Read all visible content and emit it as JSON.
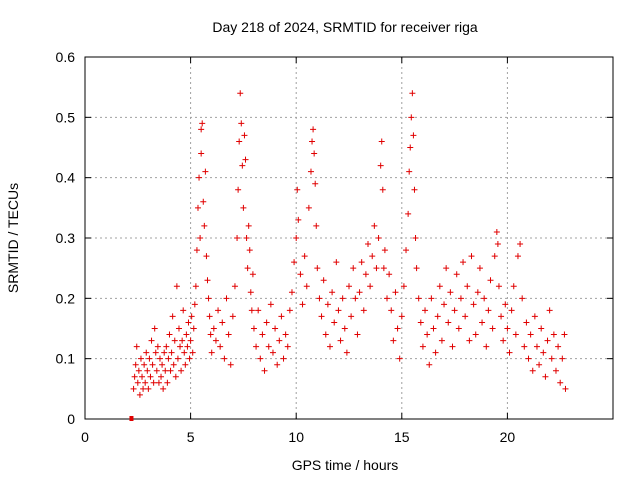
{
  "chart_data": {
    "type": "scatter",
    "title": "Day 218 of 2024, SRMTID for receiver riga",
    "xlabel": "GPS time / hours",
    "ylabel": "SRMTID / TECUs",
    "xlim": [
      0,
      25
    ],
    "ylim": [
      0,
      0.6
    ],
    "x_ticks": [
      0,
      5,
      10,
      15,
      20
    ],
    "x_tick_labels": [
      "0",
      "5",
      "10",
      "15",
      "20"
    ],
    "y_ticks": [
      0,
      0.1,
      0.2,
      0.3,
      0.4,
      0.5,
      0.6
    ],
    "y_tick_labels": [
      "0",
      "0.1",
      "0.2",
      "0.3",
      "0.4",
      "0.5",
      "0.6"
    ],
    "grid": true,
    "marker": "+",
    "series_color": "#e00000",
    "special_points": [
      {
        "x": 2.2,
        "y": 0.0,
        "marker": "square"
      }
    ],
    "series": [
      {
        "name": "SRMTID",
        "points": [
          [
            2.3,
            0.05
          ],
          [
            2.35,
            0.07
          ],
          [
            2.4,
            0.09
          ],
          [
            2.45,
            0.12
          ],
          [
            2.5,
            0.06
          ],
          [
            2.55,
            0.08
          ],
          [
            2.6,
            0.04
          ],
          [
            2.65,
            0.1
          ],
          [
            2.7,
            0.07
          ],
          [
            2.75,
            0.05
          ],
          [
            2.8,
            0.09
          ],
          [
            2.85,
            0.06
          ],
          [
            2.9,
            0.11
          ],
          [
            2.95,
            0.08
          ],
          [
            3.0,
            0.05
          ],
          [
            3.05,
            0.1
          ],
          [
            3.1,
            0.07
          ],
          [
            3.15,
            0.13
          ],
          [
            3.2,
            0.09
          ],
          [
            3.25,
            0.06
          ],
          [
            3.3,
            0.15
          ],
          [
            3.35,
            0.11
          ],
          [
            3.4,
            0.08
          ],
          [
            3.45,
            0.12
          ],
          [
            3.5,
            0.06
          ],
          [
            3.55,
            0.1
          ],
          [
            3.6,
            0.07
          ],
          [
            3.65,
            0.09
          ],
          [
            3.7,
            0.05
          ],
          [
            3.75,
            0.11
          ],
          [
            3.8,
            0.08
          ],
          [
            3.85,
            0.12
          ],
          [
            3.9,
            0.06
          ],
          [
            3.95,
            0.1
          ],
          [
            4.0,
            0.14
          ],
          [
            4.05,
            0.08
          ],
          [
            4.1,
            0.11
          ],
          [
            4.15,
            0.17
          ],
          [
            4.2,
            0.09
          ],
          [
            4.25,
            0.13
          ],
          [
            4.3,
            0.07
          ],
          [
            4.35,
            0.22
          ],
          [
            4.4,
            0.1
          ],
          [
            4.45,
            0.15
          ],
          [
            4.5,
            0.12
          ],
          [
            4.55,
            0.08
          ],
          [
            4.6,
            0.13
          ],
          [
            4.65,
            0.18
          ],
          [
            4.7,
            0.11
          ],
          [
            4.75,
            0.09
          ],
          [
            4.8,
            0.14
          ],
          [
            4.85,
            0.12
          ],
          [
            4.9,
            0.16
          ],
          [
            4.95,
            0.1
          ],
          [
            5.0,
            0.13
          ],
          [
            5.05,
            0.17
          ],
          [
            5.1,
            0.11
          ],
          [
            5.15,
            0.15
          ],
          [
            5.2,
            0.19
          ],
          [
            5.25,
            0.22
          ],
          [
            5.3,
            0.28
          ],
          [
            5.35,
            0.35
          ],
          [
            5.4,
            0.4
          ],
          [
            5.45,
            0.3
          ],
          [
            5.5,
            0.44
          ],
          [
            5.55,
            0.49
          ],
          [
            5.5,
            0.48
          ],
          [
            5.6,
            0.36
          ],
          [
            5.65,
            0.32
          ],
          [
            5.7,
            0.41
          ],
          [
            5.75,
            0.27
          ],
          [
            5.8,
            0.23
          ],
          [
            5.85,
            0.2
          ],
          [
            5.9,
            0.17
          ],
          [
            5.95,
            0.14
          ],
          [
            6.0,
            0.11
          ],
          [
            6.1,
            0.15
          ],
          [
            6.2,
            0.13
          ],
          [
            6.3,
            0.18
          ],
          [
            6.4,
            0.12
          ],
          [
            6.5,
            0.16
          ],
          [
            6.6,
            0.1
          ],
          [
            6.7,
            0.2
          ],
          [
            6.8,
            0.14
          ],
          [
            6.9,
            0.09
          ],
          [
            7.0,
            0.17
          ],
          [
            7.1,
            0.22
          ],
          [
            7.2,
            0.3
          ],
          [
            7.25,
            0.38
          ],
          [
            7.3,
            0.46
          ],
          [
            7.35,
            0.54
          ],
          [
            7.4,
            0.49
          ],
          [
            7.45,
            0.42
          ],
          [
            7.5,
            0.35
          ],
          [
            7.55,
            0.47
          ],
          [
            7.6,
            0.43
          ],
          [
            7.65,
            0.3
          ],
          [
            7.7,
            0.25
          ],
          [
            7.75,
            0.32
          ],
          [
            7.8,
            0.28
          ],
          [
            7.85,
            0.21
          ],
          [
            7.9,
            0.18
          ],
          [
            7.95,
            0.24
          ],
          [
            8.0,
            0.15
          ],
          [
            8.1,
            0.12
          ],
          [
            8.2,
            0.18
          ],
          [
            8.3,
            0.1
          ],
          [
            8.4,
            0.14
          ],
          [
            8.5,
            0.08
          ],
          [
            8.6,
            0.16
          ],
          [
            8.7,
            0.12
          ],
          [
            8.8,
            0.19
          ],
          [
            8.9,
            0.11
          ],
          [
            9.0,
            0.15
          ],
          [
            9.1,
            0.09
          ],
          [
            9.2,
            0.13
          ],
          [
            9.3,
            0.17
          ],
          [
            9.4,
            0.1
          ],
          [
            9.5,
            0.14
          ],
          [
            9.6,
            0.12
          ],
          [
            9.7,
            0.18
          ],
          [
            9.8,
            0.21
          ],
          [
            9.9,
            0.26
          ],
          [
            10.0,
            0.3
          ],
          [
            10.05,
            0.38
          ],
          [
            10.1,
            0.33
          ],
          [
            10.2,
            0.24
          ],
          [
            10.3,
            0.19
          ],
          [
            10.4,
            0.27
          ],
          [
            10.5,
            0.22
          ],
          [
            10.6,
            0.35
          ],
          [
            10.7,
            0.41
          ],
          [
            10.75,
            0.46
          ],
          [
            10.8,
            0.48
          ],
          [
            10.85,
            0.44
          ],
          [
            10.9,
            0.39
          ],
          [
            10.95,
            0.32
          ],
          [
            11.0,
            0.25
          ],
          [
            11.1,
            0.2
          ],
          [
            11.2,
            0.17
          ],
          [
            11.3,
            0.23
          ],
          [
            11.4,
            0.14
          ],
          [
            11.5,
            0.19
          ],
          [
            11.6,
            0.12
          ],
          [
            11.7,
            0.21
          ],
          [
            11.8,
            0.16
          ],
          [
            11.9,
            0.26
          ],
          [
            12.0,
            0.18
          ],
          [
            12.1,
            0.13
          ],
          [
            12.2,
            0.2
          ],
          [
            12.3,
            0.15
          ],
          [
            12.4,
            0.11
          ],
          [
            12.5,
            0.22
          ],
          [
            12.6,
            0.17
          ],
          [
            12.7,
            0.25
          ],
          [
            12.8,
            0.2
          ],
          [
            12.9,
            0.14
          ],
          [
            13.0,
            0.21
          ],
          [
            13.1,
            0.26
          ],
          [
            13.2,
            0.18
          ],
          [
            13.3,
            0.24
          ],
          [
            13.4,
            0.29
          ],
          [
            13.5,
            0.22
          ],
          [
            13.6,
            0.27
          ],
          [
            13.7,
            0.32
          ],
          [
            13.8,
            0.25
          ],
          [
            13.9,
            0.3
          ],
          [
            14.0,
            0.42
          ],
          [
            14.05,
            0.46
          ],
          [
            14.1,
            0.38
          ],
          [
            14.15,
            0.25
          ],
          [
            14.2,
            0.28
          ],
          [
            14.3,
            0.2
          ],
          [
            14.4,
            0.24
          ],
          [
            14.5,
            0.18
          ],
          [
            14.6,
            0.13
          ],
          [
            14.7,
            0.21
          ],
          [
            14.8,
            0.15
          ],
          [
            14.9,
            0.1
          ],
          [
            15.0,
            0.17
          ],
          [
            15.1,
            0.22
          ],
          [
            15.2,
            0.28
          ],
          [
            15.3,
            0.34
          ],
          [
            15.35,
            0.41
          ],
          [
            15.4,
            0.45
          ],
          [
            15.45,
            0.5
          ],
          [
            15.5,
            0.54
          ],
          [
            15.55,
            0.47
          ],
          [
            15.6,
            0.38
          ],
          [
            15.65,
            0.3
          ],
          [
            15.7,
            0.25
          ],
          [
            15.8,
            0.2
          ],
          [
            15.9,
            0.16
          ],
          [
            16.0,
            0.12
          ],
          [
            16.1,
            0.18
          ],
          [
            16.2,
            0.14
          ],
          [
            16.3,
            0.09
          ],
          [
            16.4,
            0.2
          ],
          [
            16.5,
            0.15
          ],
          [
            16.6,
            0.11
          ],
          [
            16.7,
            0.17
          ],
          [
            16.8,
            0.22
          ],
          [
            16.9,
            0.13
          ],
          [
            17.0,
            0.19
          ],
          [
            17.1,
            0.25
          ],
          [
            17.2,
            0.16
          ],
          [
            17.3,
            0.21
          ],
          [
            17.4,
            0.12
          ],
          [
            17.5,
            0.18
          ],
          [
            17.6,
            0.24
          ],
          [
            17.7,
            0.15
          ],
          [
            17.8,
            0.2
          ],
          [
            17.9,
            0.26
          ],
          [
            18.0,
            0.17
          ],
          [
            18.1,
            0.22
          ],
          [
            18.2,
            0.13
          ],
          [
            18.3,
            0.27
          ],
          [
            18.4,
            0.19
          ],
          [
            18.5,
            0.14
          ],
          [
            18.6,
            0.21
          ],
          [
            18.7,
            0.25
          ],
          [
            18.8,
            0.16
          ],
          [
            18.9,
            0.2
          ],
          [
            19.0,
            0.12
          ],
          [
            19.1,
            0.18
          ],
          [
            19.2,
            0.23
          ],
          [
            19.3,
            0.15
          ],
          [
            19.4,
            0.27
          ],
          [
            19.5,
            0.31
          ],
          [
            19.55,
            0.29
          ],
          [
            19.6,
            0.22
          ],
          [
            19.7,
            0.17
          ],
          [
            19.8,
            0.13
          ],
          [
            19.9,
            0.19
          ],
          [
            20.0,
            0.15
          ],
          [
            20.1,
            0.11
          ],
          [
            20.2,
            0.18
          ],
          [
            20.3,
            0.22
          ],
          [
            20.4,
            0.14
          ],
          [
            20.5,
            0.27
          ],
          [
            20.6,
            0.29
          ],
          [
            20.7,
            0.2
          ],
          [
            20.8,
            0.12
          ],
          [
            20.9,
            0.16
          ],
          [
            21.0,
            0.1
          ],
          [
            21.1,
            0.14
          ],
          [
            21.2,
            0.08
          ],
          [
            21.3,
            0.17
          ],
          [
            21.4,
            0.12
          ],
          [
            21.5,
            0.09
          ],
          [
            21.6,
            0.15
          ],
          [
            21.7,
            0.11
          ],
          [
            21.8,
            0.07
          ],
          [
            21.9,
            0.13
          ],
          [
            22.0,
            0.18
          ],
          [
            22.1,
            0.1
          ],
          [
            22.2,
            0.14
          ],
          [
            22.3,
            0.08
          ],
          [
            22.4,
            0.12
          ],
          [
            22.5,
            0.06
          ],
          [
            22.6,
            0.1
          ],
          [
            22.7,
            0.14
          ],
          [
            22.75,
            0.05
          ]
        ]
      }
    ]
  }
}
